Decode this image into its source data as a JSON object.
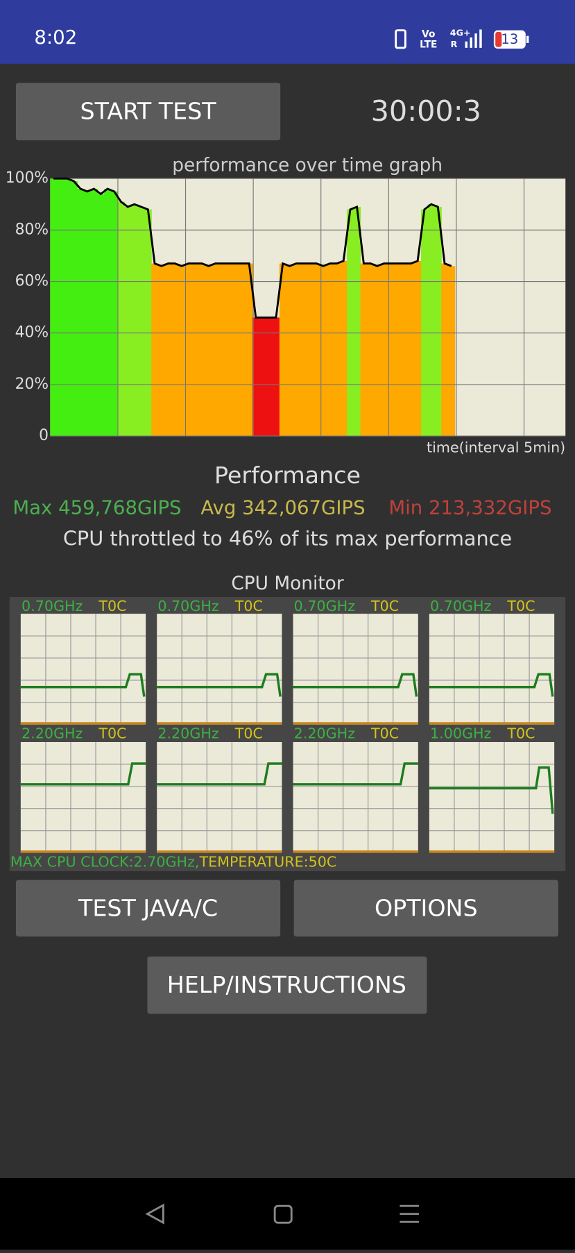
{
  "status_bar": {
    "time": "8:02",
    "volte_top": "Vo",
    "volte_bottom": "LTE",
    "network_top": "4G+",
    "network_bottom": "R",
    "battery": "13"
  },
  "start_button": "START TEST",
  "timer": "30:00:3",
  "chart_data": {
    "type": "line",
    "title": "performance over time graph",
    "x_label": "time(interval 5min)",
    "ylim": [
      0,
      100
    ],
    "yticks": [
      0,
      {
        "value": 20,
        "label": "20%"
      },
      {
        "value": 40,
        "label": "40%"
      },
      {
        "value": 60,
        "label": "60%"
      },
      {
        "value": 80,
        "label": "80%"
      },
      {
        "value": 100,
        "label": "100%"
      }
    ],
    "grid": true,
    "color": "#000000",
    "values": [
      100,
      100,
      100,
      99,
      96,
      95,
      96,
      94,
      96,
      95,
      91,
      89,
      90,
      89,
      88,
      67,
      66,
      67,
      67,
      66,
      67,
      67,
      67,
      66,
      67,
      67,
      67,
      67,
      67,
      67,
      46,
      46,
      46,
      46,
      67,
      66,
      67,
      67,
      67,
      67,
      66,
      67,
      67,
      68,
      88,
      89,
      67,
      67,
      66,
      67,
      67,
      67,
      67,
      67,
      68,
      88,
      90,
      89,
      67,
      66
    ]
  },
  "performance": {
    "title": "Performance",
    "max": "Max 459,768GIPS",
    "avg": "Avg 342,067GIPS",
    "min": "Min 213,332GIPS",
    "throttle": "CPU throttled to 46% of its max performance"
  },
  "cpu_monitor": {
    "title": "CPU Monitor",
    "cores": [
      {
        "freq": "0.70GHz",
        "temp": "T0C"
      },
      {
        "freq": "0.70GHz",
        "temp": "T0C"
      },
      {
        "freq": "0.70GHz",
        "temp": "T0C"
      },
      {
        "freq": "0.70GHz",
        "temp": "T0C"
      },
      {
        "freq": "2.20GHz",
        "temp": "T0C"
      },
      {
        "freq": "2.20GHz",
        "temp": "T0C"
      },
      {
        "freq": "2.20GHz",
        "temp": "T0C"
      },
      {
        "freq": "1.00GHz",
        "temp": "T0C"
      }
    ],
    "max_clock": "MAX CPU CLOCK:2.70GHz,",
    "temperature": "TEMPERATURE:50C"
  },
  "buttons": {
    "test": "TEST JAVA/C",
    "options": "OPTIONS",
    "help": "HELP/INSTRUCTIONS"
  }
}
